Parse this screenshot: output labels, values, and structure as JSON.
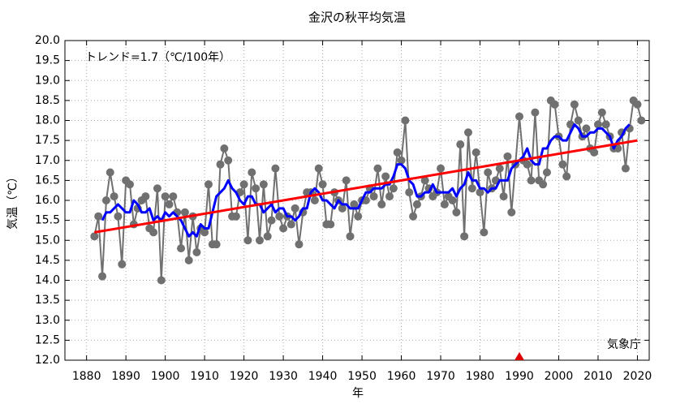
{
  "chart_data": {
    "type": "line",
    "title": "金沢の秋平均気温",
    "xlabel": "年",
    "ylabel": "気温（℃）",
    "annotations": [
      "トレンド=1.7（℃/100年）",
      "気象庁"
    ],
    "x": [
      1882,
      1883,
      1884,
      1885,
      1886,
      1887,
      1888,
      1889,
      1890,
      1891,
      1892,
      1893,
      1894,
      1895,
      1896,
      1897,
      1898,
      1899,
      1900,
      1901,
      1902,
      1903,
      1904,
      1905,
      1906,
      1907,
      1908,
      1909,
      1910,
      1911,
      1912,
      1913,
      1914,
      1915,
      1916,
      1917,
      1918,
      1919,
      1920,
      1921,
      1922,
      1923,
      1924,
      1925,
      1926,
      1927,
      1928,
      1929,
      1930,
      1931,
      1932,
      1933,
      1934,
      1935,
      1936,
      1937,
      1938,
      1939,
      1940,
      1941,
      1942,
      1943,
      1944,
      1945,
      1946,
      1947,
      1948,
      1949,
      1950,
      1951,
      1952,
      1953,
      1954,
      1955,
      1956,
      1957,
      1958,
      1959,
      1960,
      1961,
      1962,
      1963,
      1964,
      1965,
      1966,
      1967,
      1968,
      1969,
      1970,
      1971,
      1972,
      1973,
      1974,
      1975,
      1976,
      1977,
      1978,
      1979,
      1980,
      1981,
      1982,
      1983,
      1984,
      1985,
      1986,
      1987,
      1988,
      1989,
      1990,
      1991,
      1992,
      1993,
      1994,
      1995,
      1996,
      1997,
      1998,
      1999,
      2000,
      2001,
      2002,
      2003,
      2004,
      2005,
      2006,
      2007,
      2008,
      2009,
      2010,
      2011,
      2012,
      2013,
      2014,
      2015,
      2016,
      2017,
      2018,
      2019,
      2020,
      2021
    ],
    "series": [
      {
        "color": "#707070",
        "markers": true,
        "values": [
          15.1,
          15.6,
          14.1,
          16.0,
          16.7,
          16.1,
          15.6,
          14.4,
          16.5,
          16.4,
          15.4,
          15.8,
          16.0,
          16.1,
          15.3,
          15.2,
          16.3,
          14.0,
          16.1,
          15.9,
          16.1,
          15.7,
          14.8,
          15.7,
          14.5,
          15.6,
          14.7,
          15.3,
          15.2,
          16.4,
          14.9,
          14.9,
          16.9,
          17.3,
          17.0,
          15.6,
          15.6,
          16.2,
          16.4,
          15.0,
          16.7,
          16.3,
          15.0,
          16.4,
          15.1,
          15.5,
          16.8,
          15.6,
          15.3,
          15.6,
          15.4,
          15.8,
          14.9,
          15.7,
          16.2,
          16.2,
          16.0,
          16.8,
          16.4,
          15.4,
          15.4,
          16.2,
          16.0,
          15.8,
          16.5,
          15.1,
          15.9,
          15.6,
          16.0,
          16.0,
          16.3,
          16.1,
          16.8,
          15.9,
          16.6,
          16.1,
          16.3,
          17.2,
          17.0,
          18.0,
          16.2,
          15.6,
          15.9,
          16.1,
          16.5,
          16.3,
          16.1,
          16.2,
          16.8,
          15.9,
          16.1,
          16.0,
          15.7,
          17.4,
          15.1,
          17.7,
          16.3,
          17.2,
          16.2,
          15.2,
          16.7,
          16.3,
          16.5,
          16.8,
          16.1,
          17.1,
          15.7,
          16.9,
          18.1,
          17.0,
          16.9,
          16.5,
          18.2,
          16.5,
          16.4,
          16.7,
          18.5,
          18.4,
          17.6,
          16.9,
          16.6,
          17.9,
          18.4,
          18.0,
          17.6,
          17.8,
          17.3,
          17.2,
          17.9,
          18.2,
          17.9,
          17.6,
          17.3,
          17.3,
          17.7,
          16.8,
          17.8,
          18.5,
          18.4,
          18.0
        ]
      },
      {
        "color": "#0000ff",
        "markers": false,
        "values": [
          null,
          null,
          15.5,
          15.7,
          15.7,
          15.8,
          15.9,
          15.8,
          15.7,
          15.7,
          16.0,
          15.9,
          15.7,
          15.7,
          15.8,
          15.5,
          15.6,
          15.5,
          15.7,
          15.6,
          15.7,
          15.6,
          15.5,
          15.3,
          15.1,
          15.2,
          15.1,
          15.4,
          15.3,
          15.3,
          15.7,
          16.1,
          16.2,
          16.3,
          16.5,
          16.3,
          16.2,
          16.0,
          15.9,
          16.1,
          16.1,
          15.9,
          15.9,
          15.7,
          15.8,
          15.9,
          15.7,
          15.8,
          15.8,
          15.6,
          15.6,
          15.5,
          15.6,
          15.8,
          15.8,
          16.2,
          16.3,
          16.2,
          16.0,
          16.0,
          15.9,
          15.8,
          16.0,
          15.9,
          15.9,
          15.8,
          15.8,
          15.8,
          16.0,
          16.2,
          16.2,
          16.3,
          16.3,
          16.3,
          16.4,
          16.4,
          16.6,
          16.9,
          16.9,
          16.8,
          16.5,
          16.4,
          16.1,
          16.1,
          16.2,
          16.2,
          16.4,
          16.2,
          16.2,
          16.2,
          16.2,
          16.3,
          16.1,
          16.3,
          16.4,
          16.7,
          16.5,
          16.5,
          16.3,
          16.3,
          16.2,
          16.3,
          16.3,
          16.5,
          16.5,
          16.5,
          16.8,
          16.9,
          17.0,
          17.1,
          17.3,
          17.0,
          16.9,
          16.9,
          17.3,
          17.3,
          17.5,
          17.6,
          17.6,
          17.5,
          17.5,
          17.7,
          17.9,
          17.8,
          17.6,
          17.6,
          17.7,
          17.7,
          17.8,
          17.8,
          17.7,
          17.6,
          17.3,
          17.5,
          17.6,
          17.8,
          17.9,
          null,
          null,
          null
        ]
      }
    ],
    "trend": {
      "x": [
        1882,
        2020
      ],
      "values": [
        15.2,
        17.5
      ],
      "color": "#ff0000"
    },
    "event_marks": [
      1990
    ],
    "event_color": "#dd0000",
    "xlim": [
      1874.5,
      2023
    ],
    "xticks": [
      1880,
      1890,
      1900,
      1910,
      1920,
      1930,
      1940,
      1950,
      1960,
      1970,
      1980,
      1990,
      2000,
      2010,
      2020
    ],
    "ylim": [
      12,
      20
    ],
    "yticks": [
      {
        "value": 12,
        "label": "12.0"
      },
      {
        "value": 12.5,
        "label": "12.5"
      },
      {
        "value": 13,
        "label": "13.0"
      },
      {
        "value": 13.5,
        "label": "13.5"
      },
      {
        "value": 14,
        "label": "14.0"
      },
      {
        "value": 14.5,
        "label": "14.5"
      },
      {
        "value": 15,
        "label": "15.0"
      },
      {
        "value": 15.5,
        "label": "15.5"
      },
      {
        "value": 16,
        "label": "16.0"
      },
      {
        "value": 16.5,
        "label": "16.5"
      },
      {
        "value": 17,
        "label": "17.0"
      },
      {
        "value": 17.5,
        "label": "17.5"
      },
      {
        "value": 18,
        "label": "18.0"
      },
      {
        "value": 18.5,
        "label": "18.5"
      },
      {
        "value": 19,
        "label": "19.0"
      },
      {
        "value": 19.5,
        "label": "19.5"
      },
      {
        "value": 20,
        "label": "20.0"
      }
    ],
    "grid": true
  }
}
